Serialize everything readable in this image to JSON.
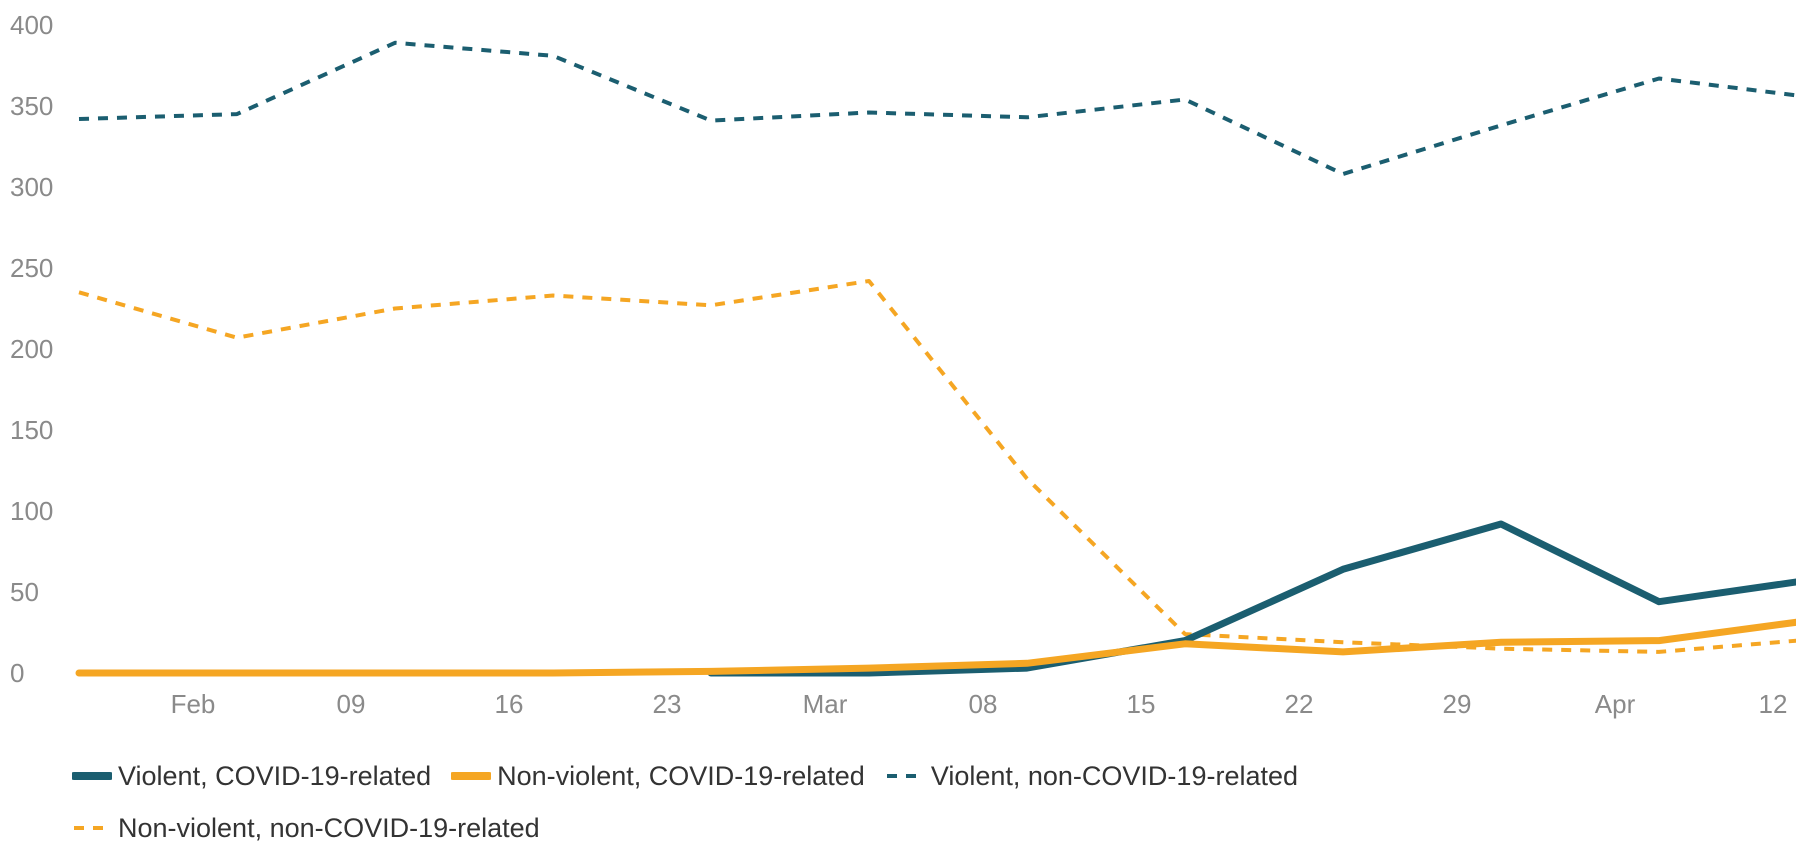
{
  "chart_data": {
    "type": "line",
    "title": "",
    "xlabel": "",
    "ylabel": "",
    "ylim": [
      0,
      400
    ],
    "y_ticks": [
      "400",
      "350",
      "300",
      "250",
      "200",
      "150",
      "100",
      "50",
      "0"
    ],
    "x_tick_labels": [
      "Feb",
      "09",
      "16",
      "23",
      "Mar",
      "08",
      "15",
      "22",
      "29",
      "Apr",
      "12"
    ],
    "grid": false,
    "legend_position": "bottom",
    "x": [
      "Jan 27",
      "Feb 03",
      "Feb 10",
      "Feb 17",
      "Feb 24",
      "Mar 02",
      "Mar 09",
      "Mar 16",
      "Mar 23",
      "Mar 30",
      "Apr 06",
      "Apr 13"
    ],
    "series": [
      {
        "name": "Violent, COVID-19-related",
        "color": "#1b5e70",
        "style": "solid",
        "values": [
          null,
          null,
          null,
          null,
          0,
          0,
          3,
          20,
          64,
          92,
          44,
          58
        ]
      },
      {
        "name": "Non-violent, COVID-19-related",
        "color": "#f5a623",
        "style": "solid",
        "values": [
          0,
          0,
          0,
          0,
          1,
          3,
          6,
          18,
          13,
          19,
          20,
          33
        ]
      },
      {
        "name": "Violent, non-COVID-19-related",
        "color": "#1b5e70",
        "style": "dashed",
        "values": [
          342,
          345,
          389,
          381,
          341,
          346,
          343,
          354,
          308,
          338,
          367,
          355
        ]
      },
      {
        "name": "Non-violent, non-COVID-19-related",
        "color": "#f5a623",
        "style": "dashed",
        "values": [
          235,
          207,
          225,
          233,
          227,
          242,
          120,
          24,
          19,
          15,
          13,
          21
        ]
      }
    ]
  }
}
